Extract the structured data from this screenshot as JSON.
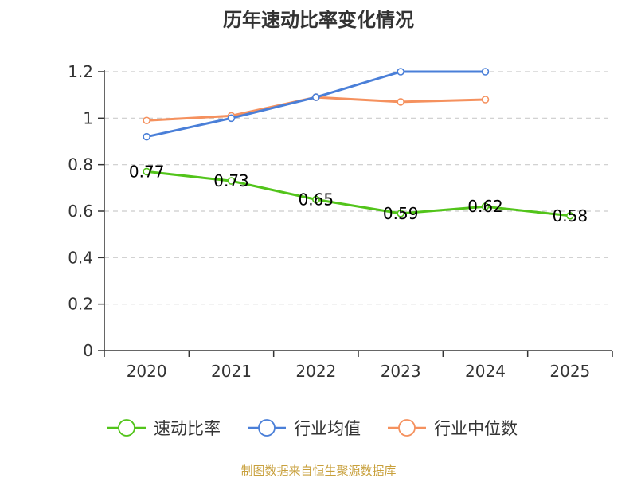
{
  "chart_data": {
    "type": "line",
    "title": "历年速动比率变化情况",
    "categories": [
      "2020",
      "2021",
      "2022",
      "2023",
      "2024",
      "2025"
    ],
    "ylim": [
      0,
      1.2
    ],
    "yticks": [
      0,
      0.2,
      0.4,
      0.6,
      0.8,
      1,
      1.2
    ],
    "ytick_labels": [
      "0",
      "0.2",
      "0.4",
      "0.6",
      "0.8",
      "1",
      "1.2"
    ],
    "grid": true,
    "legend_position": "bottom",
    "series": [
      {
        "name": "速动比率",
        "color": "#52c41a",
        "values": [
          0.77,
          0.73,
          0.65,
          0.59,
          0.62,
          0.58
        ],
        "data_labels": [
          "0.77",
          "0.73",
          "0.65",
          "0.59",
          "0.62",
          "0.58"
        ]
      },
      {
        "name": "行业均值",
        "color": "#4a7fd8",
        "values": [
          0.92,
          1.0,
          1.09,
          1.2,
          1.2,
          null
        ]
      },
      {
        "name": "行业中位数",
        "color": "#f5915e",
        "values": [
          0.99,
          1.01,
          1.09,
          1.07,
          1.08,
          null
        ]
      }
    ],
    "source": "制图数据来自恒生聚源数据库",
    "source_color": "#c8a03c"
  }
}
